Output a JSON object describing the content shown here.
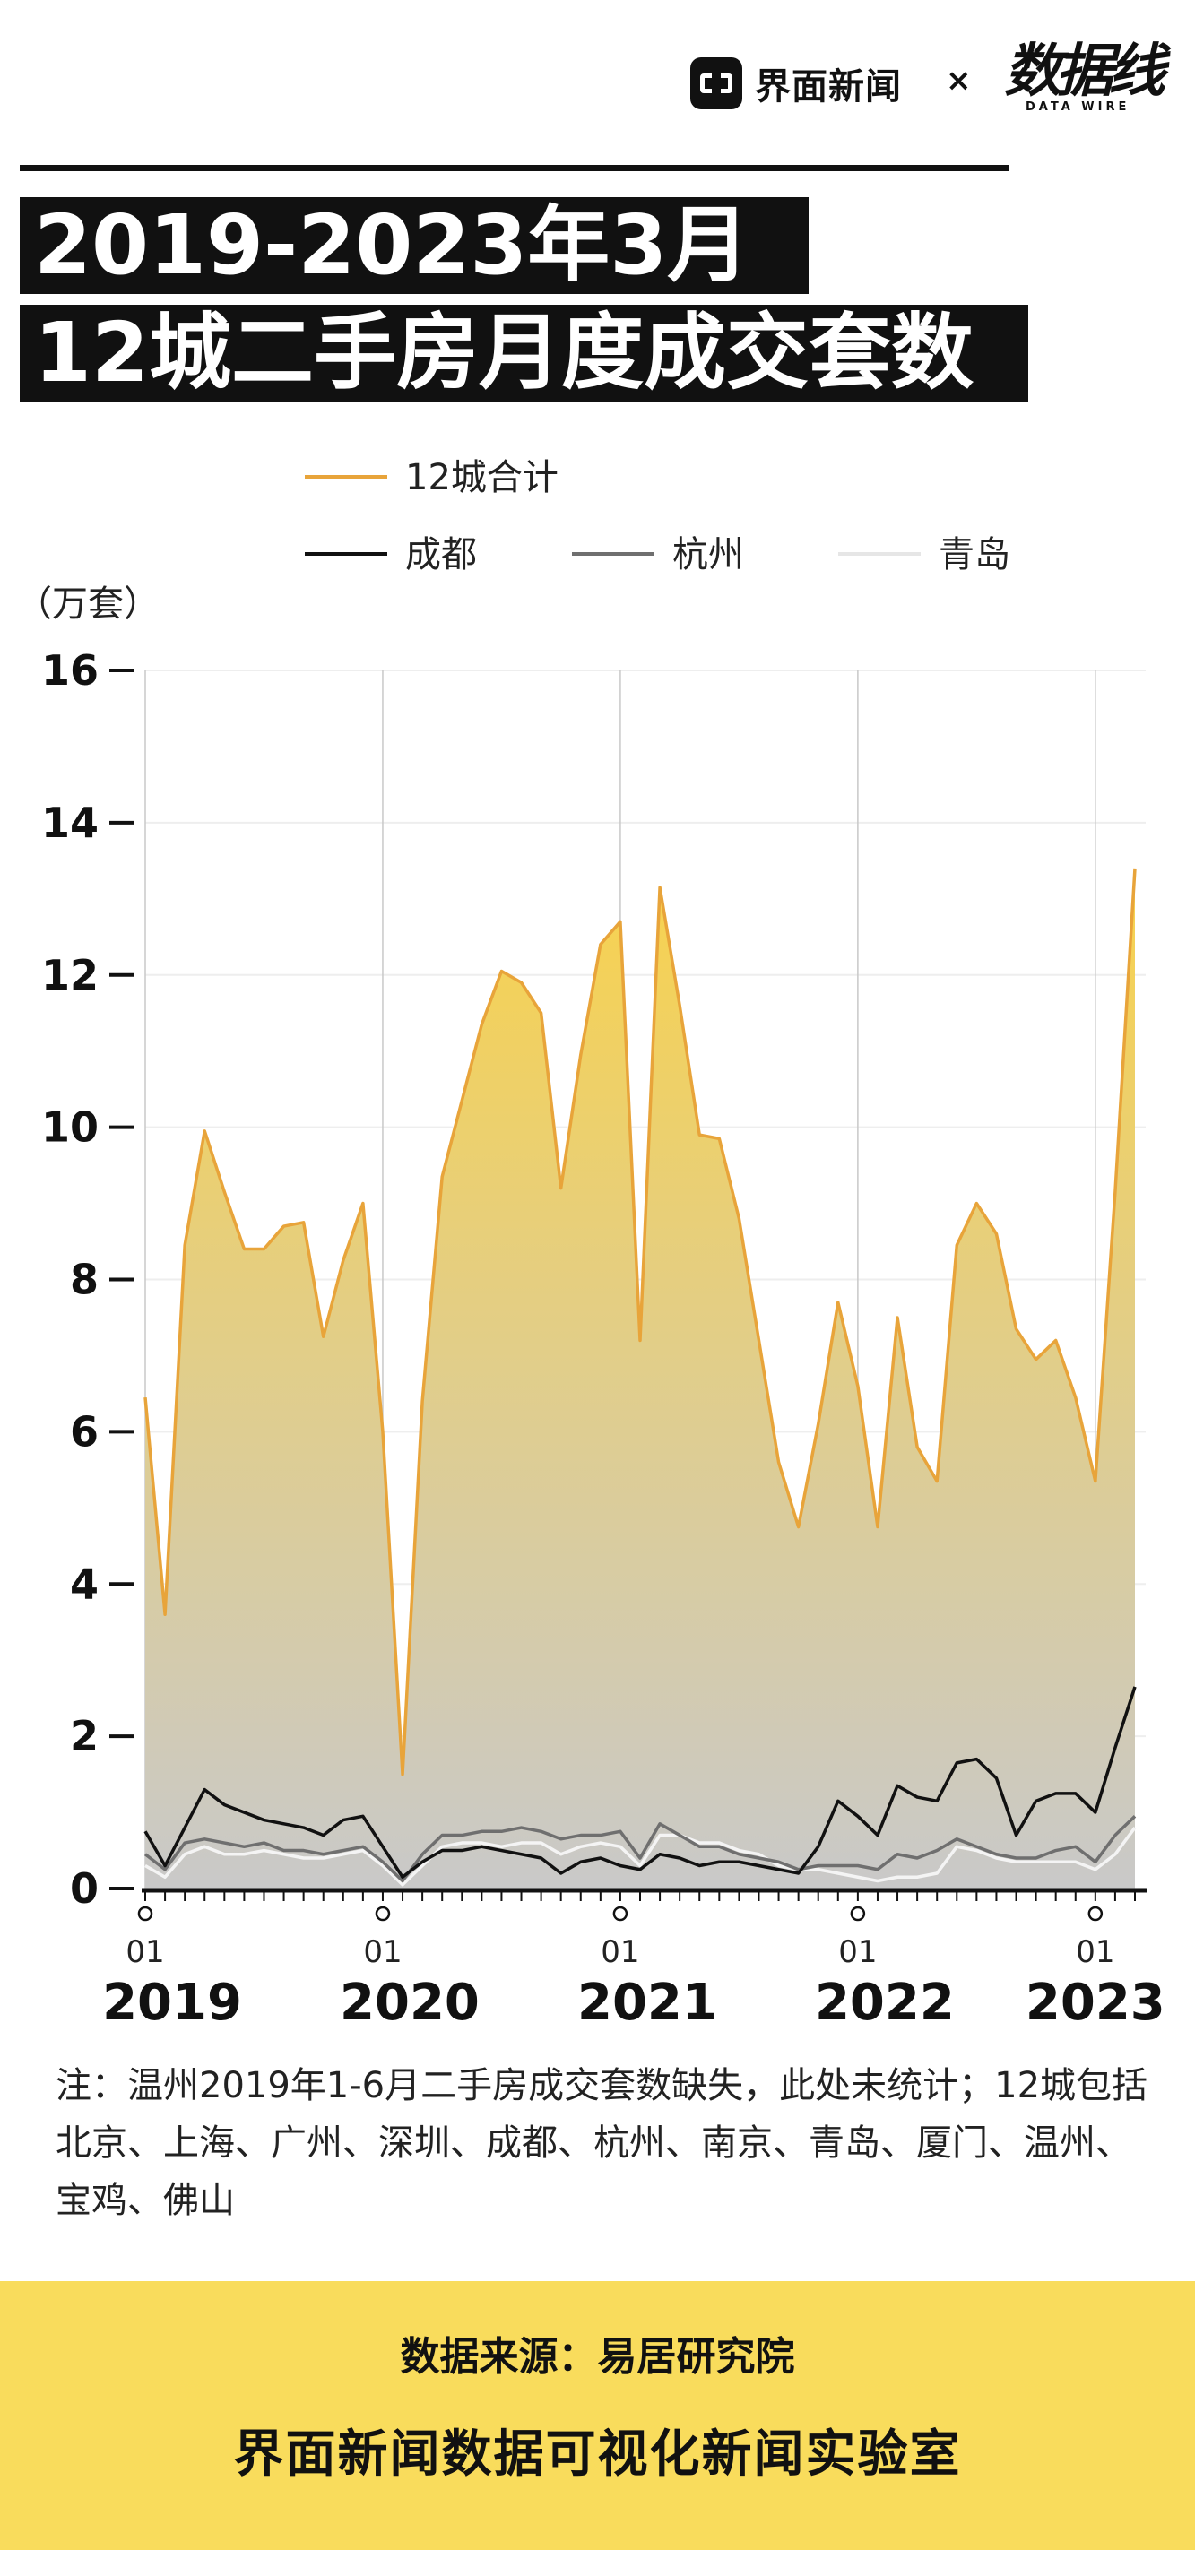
{
  "header": {
    "brand_name": "界面新闻",
    "separator": "×",
    "partner_logo": "数据线",
    "partner_sub": "DATA WIRE"
  },
  "title": {
    "line1": "2019-2023年3月",
    "line2": "12城二手房月度成交套数"
  },
  "chart_data": {
    "type": "area",
    "unit_label": "（万套）",
    "ylim": [
      0,
      16
    ],
    "yticks": [
      0,
      2,
      4,
      6,
      8,
      10,
      12,
      14,
      16
    ],
    "grid": "vertical lines at each January",
    "legend_position": "top",
    "x_tick_month": "01",
    "x_year_labels": [
      "2019",
      "2020",
      "2021",
      "2022",
      "2023"
    ],
    "x": [
      "2019-01",
      "2019-02",
      "2019-03",
      "2019-04",
      "2019-05",
      "2019-06",
      "2019-07",
      "2019-08",
      "2019-09",
      "2019-10",
      "2019-11",
      "2019-12",
      "2020-01",
      "2020-02",
      "2020-03",
      "2020-04",
      "2020-05",
      "2020-06",
      "2020-07",
      "2020-08",
      "2020-09",
      "2020-10",
      "2020-11",
      "2020-12",
      "2021-01",
      "2021-02",
      "2021-03",
      "2021-04",
      "2021-05",
      "2021-06",
      "2021-07",
      "2021-08",
      "2021-09",
      "2021-10",
      "2021-11",
      "2021-12",
      "2022-01",
      "2022-02",
      "2022-03",
      "2022-04",
      "2022-05",
      "2022-06",
      "2022-07",
      "2022-08",
      "2022-09",
      "2022-10",
      "2022-11",
      "2022-12",
      "2023-01",
      "2023-02",
      "2023-03"
    ],
    "series": [
      {
        "name": "12城合计",
        "color": "#e8a43a",
        "values": [
          6.45,
          3.6,
          8.45,
          9.95,
          9.15,
          8.4,
          8.4,
          8.7,
          8.75,
          7.25,
          8.25,
          9.0,
          6.0,
          1.5,
          6.4,
          9.35,
          10.35,
          11.35,
          12.05,
          11.9,
          11.5,
          9.2,
          10.95,
          12.4,
          12.7,
          7.2,
          13.15,
          11.6,
          9.9,
          9.85,
          8.8,
          7.2,
          5.6,
          4.75,
          6.1,
          7.7,
          6.6,
          4.75,
          7.5,
          5.8,
          5.35,
          8.45,
          9.0,
          8.6,
          7.35,
          6.95,
          7.2,
          6.45,
          5.35,
          9.15,
          13.4
        ]
      },
      {
        "name": "成都",
        "color": "#111111",
        "values": [
          0.75,
          0.3,
          0.8,
          1.3,
          1.1,
          1.0,
          0.9,
          0.85,
          0.8,
          0.7,
          0.9,
          0.95,
          0.55,
          0.15,
          0.35,
          0.5,
          0.5,
          0.55,
          0.5,
          0.45,
          0.4,
          0.2,
          0.35,
          0.4,
          0.3,
          0.25,
          0.45,
          0.4,
          0.3,
          0.35,
          0.35,
          0.3,
          0.25,
          0.2,
          0.55,
          1.15,
          0.95,
          0.7,
          1.35,
          1.2,
          1.15,
          1.65,
          1.7,
          1.45,
          0.7,
          1.15,
          1.25,
          1.25,
          1.0,
          1.85,
          2.65
        ]
      },
      {
        "name": "杭州",
        "color": "#6f6f6f",
        "values": [
          0.45,
          0.25,
          0.6,
          0.65,
          0.6,
          0.55,
          0.6,
          0.5,
          0.5,
          0.45,
          0.5,
          0.55,
          0.35,
          0.1,
          0.45,
          0.7,
          0.7,
          0.75,
          0.75,
          0.8,
          0.75,
          0.65,
          0.7,
          0.7,
          0.75,
          0.4,
          0.85,
          0.7,
          0.55,
          0.55,
          0.45,
          0.4,
          0.35,
          0.25,
          0.3,
          0.3,
          0.3,
          0.25,
          0.45,
          0.4,
          0.5,
          0.65,
          0.55,
          0.45,
          0.4,
          0.4,
          0.5,
          0.55,
          0.35,
          0.7,
          0.95
        ]
      },
      {
        "name": "青岛",
        "color": "#f4f4f4",
        "values": [
          0.3,
          0.15,
          0.45,
          0.55,
          0.45,
          0.45,
          0.5,
          0.45,
          0.4,
          0.4,
          0.45,
          0.5,
          0.3,
          0.05,
          0.3,
          0.55,
          0.6,
          0.6,
          0.55,
          0.6,
          0.6,
          0.45,
          0.55,
          0.6,
          0.55,
          0.3,
          0.7,
          0.7,
          0.6,
          0.6,
          0.5,
          0.45,
          0.3,
          0.25,
          0.25,
          0.2,
          0.15,
          0.1,
          0.15,
          0.15,
          0.2,
          0.55,
          0.5,
          0.4,
          0.35,
          0.35,
          0.35,
          0.35,
          0.25,
          0.45,
          0.8
        ]
      }
    ]
  },
  "note": "注：温州2019年1-6月二手房成交套数缺失，此处未统计；12城包括北京、上海、广州、深圳、成都、杭州、南京、青岛、厦门、温州、宝鸡、佛山",
  "footer": {
    "source": "数据来源：易居研究院",
    "org": "界面新闻数据可视化新闻实验室"
  }
}
